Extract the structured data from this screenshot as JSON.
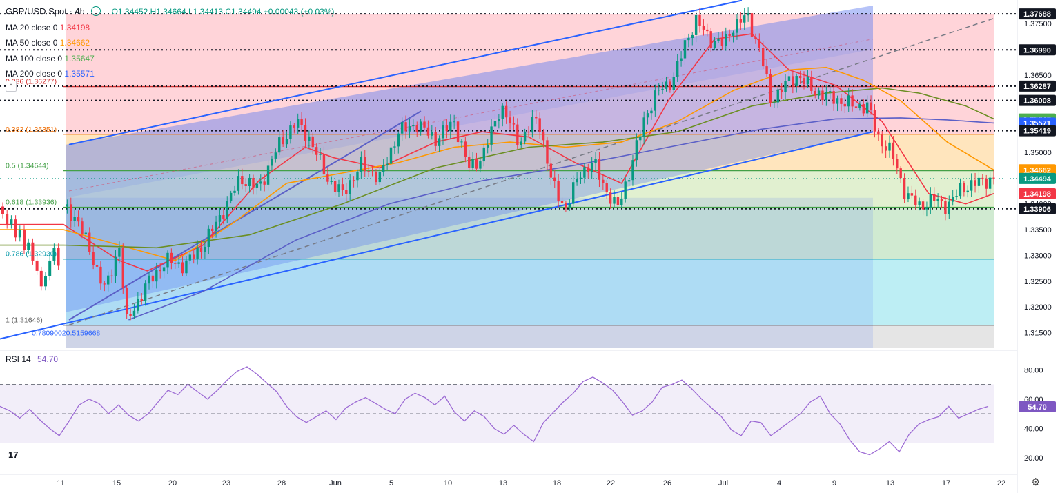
{
  "header": {
    "symbol_title": "GBP/USD Spot · 4h",
    "ohlc": "O1.34452 H1.34664 L1.34413 C1.34494 +0.00043 (+0.03%)",
    "indicators": [
      {
        "label": "MA 20 close 0",
        "value": "1.34198",
        "color": "#f23645"
      },
      {
        "label": "MA 50 close 0",
        "value": "1.34662",
        "color": "#ff9800"
      },
      {
        "label": "MA 100 close 0",
        "value": "1.35647",
        "color": "#4caf50"
      },
      {
        "label": "MA 200 close 0",
        "value": "1.35571",
        "color": "#2962ff"
      }
    ],
    "rsi_label": "RSI 14",
    "rsi_value": "54.70"
  },
  "colors": {
    "up": "#089981",
    "down": "#f23645",
    "ma20": "#f23645",
    "ma50": "#ff9800",
    "ma100": "#6b8e23",
    "ma200": "#5b5fc7",
    "channel": "#2962ff",
    "rsi": "#9c6ad4",
    "rsi_band": "#7e57c2"
  },
  "chart_data": {
    "type": "candlestick",
    "title": "GBP/USD Spot · 4h",
    "ylim": [
      1.312,
      1.3785
    ],
    "y_ticks": [
      "1.37500",
      "1.37000",
      "1.36500",
      "1.36000",
      "1.35500",
      "1.35000",
      "1.34500",
      "1.34000",
      "1.33500",
      "1.33000",
      "1.32500",
      "1.32000",
      "1.31500"
    ],
    "x_ticks": [
      "11",
      "15",
      "20",
      "23",
      "28",
      "Jun",
      "5",
      "10",
      "13",
      "18",
      "22",
      "26",
      "Jul",
      "4",
      "9",
      "13",
      "17",
      "22"
    ],
    "price_path": [
      [
        0,
        1.3395
      ],
      [
        0.015,
        1.337
      ],
      [
        0.03,
        1.33
      ],
      [
        0.045,
        1.3232
      ],
      [
        0.06,
        1.3318
      ],
      [
        0.068,
        1.317
      ],
      [
        0.075,
        1.3195
      ],
      [
        0.09,
        1.3245
      ],
      [
        0.11,
        1.329
      ],
      [
        0.13,
        1.328
      ],
      [
        0.15,
        1.332
      ],
      [
        0.17,
        1.338
      ],
      [
        0.19,
        1.345
      ],
      [
        0.21,
        1.343
      ],
      [
        0.23,
        1.351
      ],
      [
        0.25,
        1.356
      ],
      [
        0.265,
        1.3525
      ],
      [
        0.285,
        1.3445
      ],
      [
        0.3,
        1.342
      ],
      [
        0.32,
        1.3475
      ],
      [
        0.34,
        1.345
      ],
      [
        0.36,
        1.354
      ],
      [
        0.38,
        1.3555
      ],
      [
        0.4,
        1.3525
      ],
      [
        0.42,
        1.356
      ],
      [
        0.435,
        1.347
      ],
      [
        0.45,
        1.349
      ],
      [
        0.47,
        1.359
      ],
      [
        0.49,
        1.352
      ],
      [
        0.51,
        1.357
      ],
      [
        0.525,
        1.344
      ],
      [
        0.54,
        1.339
      ],
      [
        0.555,
        1.346
      ],
      [
        0.57,
        1.348
      ],
      [
        0.585,
        1.342
      ],
      [
        0.595,
        1.339
      ],
      [
        0.61,
        1.347
      ],
      [
        0.625,
        1.357
      ],
      [
        0.64,
        1.362
      ],
      [
        0.655,
        1.364
      ],
      [
        0.67,
        1.372
      ],
      [
        0.68,
        1.3755
      ],
      [
        0.695,
        1.372
      ],
      [
        0.71,
        1.371
      ],
      [
        0.72,
        1.3745
      ],
      [
        0.735,
        1.3765
      ],
      [
        0.75,
        1.369
      ],
      [
        0.76,
        1.36
      ],
      [
        0.775,
        1.363
      ],
      [
        0.79,
        1.365
      ],
      [
        0.805,
        1.362
      ],
      [
        0.82,
        1.361
      ],
      [
        0.835,
        1.36
      ],
      [
        0.85,
        1.359
      ],
      [
        0.865,
        1.359
      ],
      [
        0.875,
        1.353
      ],
      [
        0.89,
        1.35
      ],
      [
        0.905,
        1.342
      ],
      [
        0.92,
        1.3395
      ],
      [
        0.935,
        1.341
      ],
      [
        0.95,
        1.3395
      ],
      [
        0.965,
        1.343
      ],
      [
        0.98,
        1.344
      ],
      [
        1.0,
        1.3449
      ]
    ],
    "moving_averages": {
      "ma20": [
        [
          0,
          1.336
        ],
        [
          0.06,
          1.329
        ],
        [
          0.09,
          1.327
        ],
        [
          0.15,
          1.332
        ],
        [
          0.21,
          1.3445
        ],
        [
          0.26,
          1.351
        ],
        [
          0.29,
          1.349
        ],
        [
          0.34,
          1.347
        ],
        [
          0.4,
          1.352
        ],
        [
          0.45,
          1.354
        ],
        [
          0.5,
          1.353
        ],
        [
          0.55,
          1.348
        ],
        [
          0.6,
          1.344
        ],
        [
          0.65,
          1.36
        ],
        [
          0.7,
          1.372
        ],
        [
          0.74,
          1.373
        ],
        [
          0.78,
          1.366
        ],
        [
          0.83,
          1.363
        ],
        [
          0.88,
          1.356
        ],
        [
          0.93,
          1.342
        ],
        [
          0.97,
          1.34
        ],
        [
          1.0,
          1.342
        ]
      ],
      "ma50": [
        [
          0,
          1.335
        ],
        [
          0.06,
          1.332
        ],
        [
          0.12,
          1.329
        ],
        [
          0.18,
          1.336
        ],
        [
          0.24,
          1.344
        ],
        [
          0.3,
          1.346
        ],
        [
          0.36,
          1.348
        ],
        [
          0.42,
          1.351
        ],
        [
          0.48,
          1.352
        ],
        [
          0.54,
          1.351
        ],
        [
          0.6,
          1.352
        ],
        [
          0.66,
          1.356
        ],
        [
          0.72,
          1.362
        ],
        [
          0.78,
          1.366
        ],
        [
          0.82,
          1.3665
        ],
        [
          0.86,
          1.364
        ],
        [
          0.9,
          1.36
        ],
        [
          0.95,
          1.352
        ],
        [
          1.0,
          1.3466
        ]
      ],
      "ma100": [
        [
          0,
          1.332
        ],
        [
          0.1,
          1.3315
        ],
        [
          0.2,
          1.334
        ],
        [
          0.3,
          1.34
        ],
        [
          0.4,
          1.347
        ],
        [
          0.5,
          1.351
        ],
        [
          0.58,
          1.352
        ],
        [
          0.66,
          1.354
        ],
        [
          0.74,
          1.359
        ],
        [
          0.82,
          1.3615
        ],
        [
          0.88,
          1.3625
        ],
        [
          0.92,
          1.3615
        ],
        [
          0.97,
          1.359
        ],
        [
          1.0,
          1.3565
        ]
      ],
      "ma200": [
        [
          0.07,
          1.3175
        ],
        [
          0.15,
          1.323
        ],
        [
          0.25,
          1.333
        ],
        [
          0.35,
          1.34
        ],
        [
          0.45,
          1.3445
        ],
        [
          0.55,
          1.3475
        ],
        [
          0.65,
          1.351
        ],
        [
          0.75,
          1.3545
        ],
        [
          0.83,
          1.3565
        ],
        [
          0.9,
          1.3567
        ],
        [
          0.95,
          1.3563
        ],
        [
          1.0,
          1.3557
        ]
      ]
    },
    "fib_levels": [
      {
        "label": "0.236 (1.36277)",
        "value": 1.36277
      },
      {
        "label": "0.382 (1.35351)",
        "value": 1.35351
      },
      {
        "label": "0.5 (1.34644)",
        "value": 1.34644
      },
      {
        "label": "0.618 (1.33936)",
        "value": 1.33936
      },
      {
        "label": "0.786 (1.32930)",
        "value": 1.3293
      },
      {
        "label": "1 (1.31646)",
        "value": 1.31646
      }
    ],
    "fib_colors": [
      "#ffcdd2",
      "#ffe0b2",
      "#dcedc8",
      "#c8e6c9",
      "#b2ebf2",
      "#e0e0e0"
    ],
    "dotted_levels": [
      1.37688,
      1.3699,
      1.36287,
      1.36008,
      1.35419,
      1.33906
    ],
    "price_labels": [
      {
        "text": "1.37688",
        "value": 1.37688,
        "bg": "#131722",
        "fg": "#ffffff"
      },
      {
        "text": "1.36990",
        "value": 1.3699,
        "bg": "#131722",
        "fg": "#ffffff"
      },
      {
        "text": "1.36287",
        "value": 1.36287,
        "bg": "#131722",
        "fg": "#ffffff"
      },
      {
        "text": "1.36008",
        "value": 1.36008,
        "bg": "#131722",
        "fg": "#ffffff"
      },
      {
        "text": "1.35647",
        "value": 1.35647,
        "bg": "#4caf50",
        "fg": "#ffffff"
      },
      {
        "text": "1.35571",
        "value": 1.35571,
        "bg": "#2962ff",
        "fg": "#ffffff"
      },
      {
        "text": "1.35419",
        "value": 1.35419,
        "bg": "#131722",
        "fg": "#ffffff"
      },
      {
        "text": "1.34662",
        "value": 1.34662,
        "bg": "#ff9800",
        "fg": "#ffffff"
      },
      {
        "text": "1.34494",
        "value": 1.34494,
        "bg": "#089981",
        "fg": "#ffffff"
      },
      {
        "text": "1.34198",
        "value": 1.34198,
        "bg": "#f23645",
        "fg": "#ffffff"
      },
      {
        "text": "1.33906",
        "value": 1.33906,
        "bg": "#131722",
        "fg": "#ffffff"
      }
    ],
    "extra_label": "0.78090020.5159668",
    "rsi": {
      "ylim": [
        10,
        90
      ],
      "y_ticks": [
        "80.00",
        "60.00",
        "40.00",
        "20.00"
      ],
      "bands": [
        70,
        50,
        30
      ],
      "last": 54.7,
      "series": [
        55,
        52,
        47,
        53,
        46,
        40,
        35,
        45,
        56,
        60,
        57,
        50,
        56,
        49,
        45,
        50,
        58,
        66,
        63,
        70,
        65,
        60,
        66,
        73,
        79,
        82,
        77,
        71,
        65,
        55,
        48,
        44,
        48,
        52,
        46,
        54,
        58,
        61,
        57,
        53,
        50,
        60,
        64,
        61,
        56,
        62,
        51,
        45,
        52,
        48,
        40,
        36,
        42,
        36,
        31,
        44,
        51,
        58,
        64,
        72,
        75,
        71,
        66,
        58,
        49,
        52,
        58,
        68,
        70,
        73,
        67,
        60,
        54,
        48,
        39,
        35,
        45,
        44,
        35,
        40,
        45,
        50,
        58,
        62,
        50,
        43,
        32,
        24,
        22,
        26,
        31,
        24,
        36,
        43,
        46,
        48,
        55,
        47,
        50,
        53,
        55
      ]
    }
  }
}
